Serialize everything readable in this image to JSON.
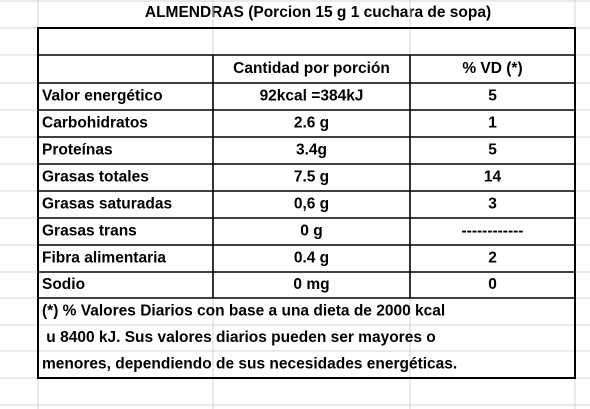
{
  "title": "ALMENDRAS (Porcion 15 g 1 cuchara de sopa)",
  "table": {
    "header": [
      "Cantidad por porción",
      "% VD (*)"
    ],
    "rows": [
      [
        "Valor energético",
        "92kcal =384kJ",
        "5"
      ],
      [
        "Carbohidratos",
        "2.6 g",
        "1"
      ],
      [
        "Proteínas",
        "3.4g",
        "5"
      ],
      [
        "Grasas totales",
        "7.5 g",
        "14"
      ],
      [
        "Grasas saturadas",
        "0,6 g",
        "3"
      ],
      [
        "Grasas trans",
        "0 g",
        "------------"
      ],
      [
        "Fibra alimentaria",
        "0.4 g",
        "2"
      ],
      [
        "Sodio",
        "0 mg",
        "0"
      ]
    ],
    "footnote": [
      "(*) % Valores Diarios con base a una dieta de 2000 kcal",
      " u 8400 kJ. Sus valores diarios pueden ser mayores o",
      "menores, dependiendo de sus necesidades energéticas."
    ]
  }
}
